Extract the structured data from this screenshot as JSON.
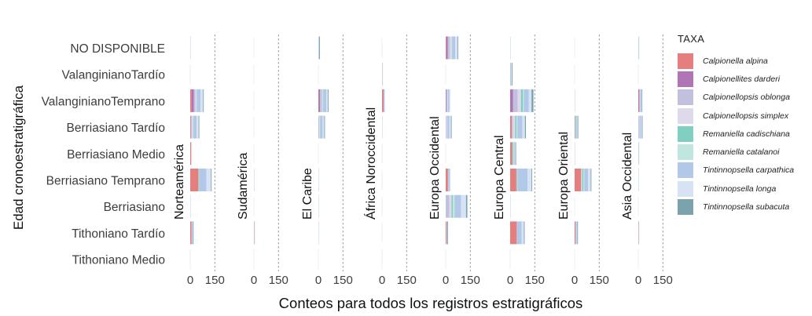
{
  "chart_data": {
    "type": "bar",
    "orientation": "horizontal",
    "stacked": true,
    "faceted": true,
    "xlabel": "Conteos para todos los registros estratigráficos",
    "ylabel": "Edad cronoestratigráfica",
    "xlim": [
      0,
      150
    ],
    "x_ticks": [
      0,
      150
    ],
    "x_tick_labels": [
      "0",
      "150"
    ],
    "reference_line_x": 150,
    "categories": [
      "NO DISPONIBLE",
      "ValanginianoTardío",
      "ValanginianoTemprano",
      "Berriasiano Tardío",
      "Berriasiano Medio",
      "Berriasiano Temprano",
      "Berriasiano",
      "Tithoniano Tardío",
      "Tithoniano Medio"
    ],
    "taxa": [
      {
        "name": "Calpionella alpina",
        "color": "#E57F7F"
      },
      {
        "name": "Calpionellites darderi",
        "color": "#B175B6"
      },
      {
        "name": "Calpionellopsis oblonga",
        "color": "#C1C1DF"
      },
      {
        "name": "Calpionellopsis simplex",
        "color": "#DEDAEC"
      },
      {
        "name": "Remaniella cadischiana",
        "color": "#80CFC0"
      },
      {
        "name": "Remaniella catalanoi",
        "color": "#BFE6DF"
      },
      {
        "name": "Tintinnopsella carpathica",
        "color": "#B2C8E8"
      },
      {
        "name": "Tintinnopsella longa",
        "color": "#D7E3F4"
      },
      {
        "name": "Tintinnopsella subacuta",
        "color": "#7BA3AE"
      }
    ],
    "legend_title": "TAXA",
    "legend_position": "right",
    "facets": [
      {
        "name": "Norteamérica",
        "values": [
          [
            0,
            0,
            0,
            0,
            0,
            0,
            0,
            1,
            0
          ],
          [
            0,
            0,
            0,
            0,
            0,
            0,
            0,
            0,
            0
          ],
          [
            8,
            14,
            10,
            8,
            2,
            1,
            20,
            15,
            2
          ],
          [
            4,
            0,
            6,
            8,
            2,
            1,
            18,
            12,
            1
          ],
          [
            6,
            0,
            0,
            0,
            0,
            0,
            0,
            1,
            0
          ],
          [
            50,
            0,
            0,
            2,
            4,
            2,
            40,
            28,
            2
          ],
          [
            0,
            0,
            0,
            0,
            0,
            0,
            0,
            1,
            0
          ],
          [
            8,
            0,
            0,
            0,
            0,
            0,
            4,
            4,
            2
          ],
          [
            0,
            0,
            0,
            0,
            0,
            0,
            0,
            0,
            0
          ]
        ]
      },
      {
        "name": "Sudamérica",
        "values": [
          [
            0,
            0,
            0,
            0,
            0,
            0,
            0,
            0,
            0
          ],
          [
            0,
            0,
            0,
            0,
            0,
            0,
            0,
            0,
            0
          ],
          [
            0,
            0,
            0,
            0,
            0,
            0,
            0,
            0,
            0
          ],
          [
            0,
            0,
            0,
            0,
            0,
            0,
            0,
            0,
            0
          ],
          [
            0,
            0,
            0,
            0,
            0,
            0,
            0,
            0,
            0
          ],
          [
            0,
            0,
            0,
            0,
            0,
            0,
            0,
            3,
            0
          ],
          [
            0,
            0,
            0,
            0,
            0,
            0,
            0,
            0,
            0
          ],
          [
            2,
            0,
            0,
            0,
            0,
            0,
            0,
            1,
            0
          ],
          [
            0,
            0,
            0,
            0,
            0,
            0,
            0,
            0,
            0
          ]
        ]
      },
      {
        "name": "El Caribe",
        "values": [
          [
            0,
            0,
            0,
            0,
            0,
            0,
            3,
            2,
            1
          ],
          [
            0,
            0,
            0,
            0,
            0,
            0,
            0,
            0,
            0
          ],
          [
            2,
            8,
            12,
            6,
            4,
            2,
            14,
            10,
            4
          ],
          [
            0,
            0,
            6,
            4,
            2,
            2,
            12,
            10,
            4
          ],
          [
            0,
            0,
            0,
            0,
            0,
            0,
            0,
            0,
            0
          ],
          [
            0,
            0,
            0,
            0,
            0,
            0,
            0,
            1,
            0
          ],
          [
            0,
            0,
            0,
            0,
            0,
            0,
            0,
            1,
            0
          ],
          [
            0,
            0,
            0,
            0,
            0,
            0,
            0,
            1,
            0
          ],
          [
            0,
            0,
            0,
            0,
            0,
            0,
            0,
            0,
            0
          ]
        ]
      },
      {
        "name": "África Noroccidental",
        "values": [
          [
            0,
            0,
            0,
            0,
            0,
            0,
            0,
            0,
            0
          ],
          [
            1,
            0,
            0,
            0,
            0,
            0,
            0,
            1,
            0
          ],
          [
            8,
            2,
            0,
            0,
            0,
            0,
            4,
            2,
            0
          ],
          [
            0,
            0,
            0,
            0,
            0,
            0,
            0,
            2,
            0
          ],
          [
            0,
            0,
            0,
            0,
            0,
            0,
            0,
            0,
            0
          ],
          [
            0,
            0,
            0,
            0,
            0,
            0,
            0,
            0,
            0
          ],
          [
            0,
            0,
            0,
            0,
            0,
            0,
            0,
            0,
            0
          ],
          [
            0,
            0,
            0,
            0,
            0,
            0,
            0,
            0,
            0
          ],
          [
            0,
            0,
            0,
            0,
            0,
            0,
            0,
            0,
            0
          ]
        ]
      },
      {
        "name": "Europa Occidental",
        "values": [
          [
            4,
            8,
            14,
            12,
            2,
            2,
            16,
            14,
            4
          ],
          [
            0,
            0,
            0,
            0,
            0,
            0,
            0,
            0,
            0
          ],
          [
            0,
            4,
            6,
            4,
            0,
            0,
            8,
            6,
            0
          ],
          [
            0,
            0,
            4,
            6,
            0,
            0,
            12,
            10,
            4
          ],
          [
            0,
            0,
            0,
            0,
            0,
            0,
            0,
            0,
            0
          ],
          [
            14,
            0,
            0,
            2,
            0,
            0,
            8,
            6,
            0
          ],
          [
            0,
            0,
            22,
            14,
            8,
            10,
            40,
            30,
            8
          ],
          [
            6,
            0,
            0,
            0,
            0,
            0,
            2,
            2,
            2
          ],
          [
            0,
            0,
            0,
            0,
            0,
            0,
            0,
            0,
            0
          ]
        ]
      },
      {
        "name": "Europa Central",
        "values": [
          [
            0,
            0,
            0,
            0,
            0,
            0,
            0,
            2,
            0
          ],
          [
            0,
            0,
            0,
            0,
            0,
            0,
            6,
            4,
            2
          ],
          [
            0,
            18,
            28,
            20,
            12,
            6,
            30,
            16,
            12
          ],
          [
            10,
            0,
            8,
            12,
            8,
            6,
            30,
            16,
            6
          ],
          [
            12,
            0,
            0,
            0,
            6,
            4,
            6,
            4,
            4
          ],
          [
            38,
            0,
            0,
            2,
            4,
            2,
            60,
            24,
            4
          ],
          [
            0,
            0,
            0,
            0,
            0,
            0,
            0,
            4,
            0
          ],
          [
            40,
            0,
            0,
            0,
            0,
            0,
            30,
            14,
            4
          ],
          [
            0,
            0,
            0,
            0,
            0,
            0,
            0,
            0,
            0
          ]
        ]
      },
      {
        "name": "Europa Oriental",
        "values": [
          [
            0,
            0,
            0,
            0,
            0,
            0,
            0,
            0,
            0
          ],
          [
            0,
            0,
            0,
            0,
            0,
            0,
            0,
            0,
            0
          ],
          [
            0,
            0,
            0,
            0,
            0,
            0,
            0,
            2,
            0
          ],
          [
            2,
            0,
            0,
            0,
            4,
            2,
            6,
            4,
            4
          ],
          [
            0,
            0,
            0,
            0,
            0,
            0,
            0,
            1,
            0
          ],
          [
            40,
            0,
            0,
            6,
            8,
            6,
            22,
            16,
            4
          ],
          [
            0,
            0,
            0,
            0,
            0,
            0,
            0,
            0,
            0
          ],
          [
            6,
            0,
            0,
            0,
            0,
            0,
            6,
            4,
            2
          ],
          [
            0,
            0,
            0,
            0,
            0,
            0,
            0,
            0,
            0
          ]
        ]
      },
      {
        "name": "Asia Occidental",
        "values": [
          [
            0,
            0,
            0,
            0,
            0,
            0,
            2,
            2,
            0
          ],
          [
            0,
            0,
            0,
            0,
            0,
            0,
            0,
            0,
            0
          ],
          [
            2,
            4,
            4,
            0,
            0,
            0,
            6,
            4,
            2
          ],
          [
            0,
            0,
            4,
            4,
            0,
            0,
            8,
            6,
            2
          ],
          [
            0,
            0,
            0,
            0,
            0,
            0,
            2,
            2,
            0
          ],
          [
            0,
            0,
            0,
            0,
            0,
            0,
            0,
            2,
            0
          ],
          [
            0,
            0,
            0,
            0,
            0,
            0,
            0,
            0,
            0
          ],
          [
            2,
            0,
            0,
            0,
            0,
            0,
            0,
            1,
            0
          ],
          [
            0,
            0,
            0,
            0,
            0,
            0,
            0,
            0,
            0
          ]
        ]
      }
    ]
  }
}
